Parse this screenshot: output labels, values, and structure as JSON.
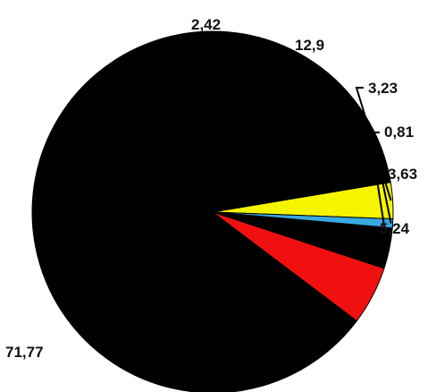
{
  "chart_data": {
    "type": "pie",
    "title": "",
    "legend": "none",
    "slices": [
      {
        "label": "71,77",
        "value": 71.77,
        "color": "#000000"
      },
      {
        "label": "2,42",
        "value": 2.42,
        "color": "#000000"
      },
      {
        "label": "12,9",
        "value": 12.9,
        "color": "#000000"
      },
      {
        "label": "3,23",
        "value": 3.23,
        "color": "#f5f500"
      },
      {
        "label": "0,81",
        "value": 0.81,
        "color": "#3aa9e0"
      },
      {
        "label": "3,63",
        "value": 3.63,
        "color": "#000000"
      },
      {
        "label": "5,24",
        "value": 5.24,
        "color": "#f01010"
      }
    ]
  }
}
